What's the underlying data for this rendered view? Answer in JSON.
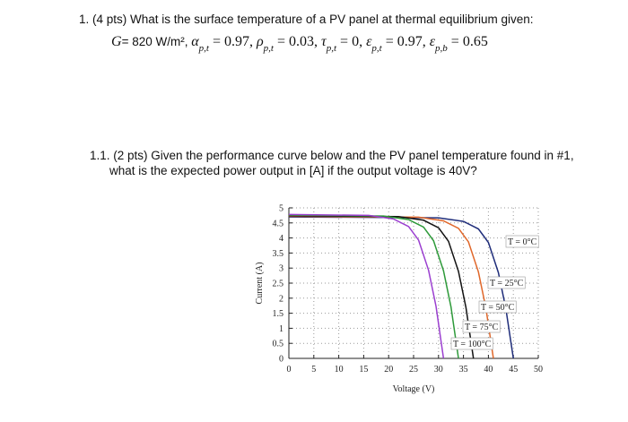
{
  "question1": {
    "text": "1.  (4 pts) What is the surface temperature of a PV panel at thermal equilibrium given:",
    "terms": [
      {
        "symbol": "G",
        "value": "= 820 W/m², "
      },
      {
        "symbol": "α",
        "subscript": "p,t",
        "value": " = 0.97, "
      },
      {
        "symbol": "ρ",
        "subscript": "p,t",
        "value": " = 0.03, "
      },
      {
        "symbol": "τ",
        "subscript": "p,t",
        "value": " = 0, "
      },
      {
        "symbol": "ε",
        "subscript": "p,t",
        "value": " = 0.97, "
      },
      {
        "symbol": "ε",
        "subscript": "p,b",
        "value": " = 0.65"
      }
    ]
  },
  "question2": {
    "lines": [
      "1.1. (2 pts) Given the performance curve below and the PV panel temperature found in #1,",
      "what is the expected power output in [A] if the output voltage is 40V?"
    ]
  },
  "chart_data": {
    "type": "line",
    "x_label": "Voltage (V)",
    "y_label": "Current (A)",
    "xlim": [
      0,
      50
    ],
    "ylim": [
      0,
      5
    ],
    "xticks": [
      0,
      5,
      10,
      15,
      20,
      25,
      30,
      35,
      40,
      45,
      50
    ],
    "yticks": [
      0,
      0.5,
      1,
      1.5,
      2,
      2.5,
      3,
      3.5,
      4,
      4.5,
      5
    ],
    "grid": true,
    "series": [
      {
        "name": "T = 0°C",
        "color": "#1f2d7a",
        "x": [
          0,
          30,
          35,
          38,
          40,
          42,
          43.5,
          45
        ],
        "values": [
          4.7,
          4.67,
          4.55,
          4.3,
          3.85,
          2.85,
          1.65,
          0
        ]
      },
      {
        "name": "T = 25°C",
        "color": "#e0672a",
        "x": [
          0,
          26,
          31,
          34,
          36,
          38,
          39.5,
          41
        ],
        "values": [
          4.72,
          4.69,
          4.57,
          4.32,
          3.87,
          2.87,
          1.67,
          0
        ]
      },
      {
        "name": "T = 50°C",
        "color": "#111111",
        "x": [
          0,
          22,
          27,
          30,
          32,
          34,
          35.5,
          37
        ],
        "values": [
          4.74,
          4.71,
          4.59,
          4.34,
          3.89,
          2.89,
          1.69,
          0
        ]
      },
      {
        "name": "T = 75°C",
        "color": "#2e9a3a",
        "x": [
          0,
          19,
          24,
          27,
          29,
          31,
          32.5,
          34
        ],
        "values": [
          4.76,
          4.73,
          4.61,
          4.36,
          3.91,
          2.91,
          1.71,
          0
        ]
      },
      {
        "name": "T = 100°C",
        "color": "#9b3fd0",
        "x": [
          0,
          16,
          21,
          24,
          26,
          28,
          29.5,
          31
        ],
        "values": [
          4.78,
          4.75,
          4.63,
          4.38,
          3.93,
          2.93,
          1.73,
          0
        ]
      }
    ]
  }
}
